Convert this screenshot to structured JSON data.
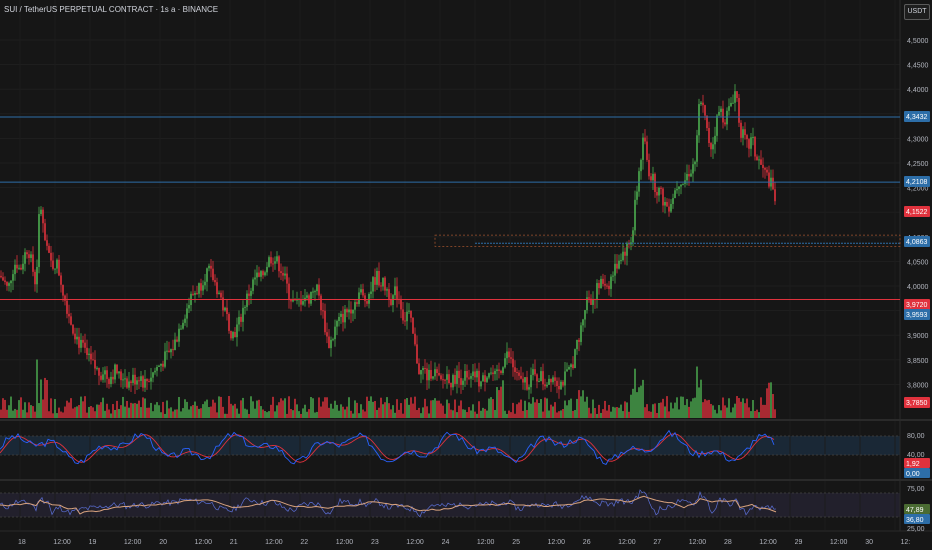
{
  "header": {
    "title": "SUI / TetherUS PERPETUAL CONTRACT · 1s a · BINANCE",
    "currency": "USDT"
  },
  "price_axis": {
    "ticks": [
      "4,5000",
      "4,4500",
      "4,4000",
      "4,3500",
      "4,3000",
      "4,2500",
      "4,2000",
      "4,1500",
      "4,1000",
      "4,0500",
      "4,0000",
      "3,9500",
      "3,9000",
      "3,8500",
      "3,8000"
    ],
    "labels": [
      {
        "text": "4,3432",
        "color": "#2d6ea8"
      },
      {
        "text": "4,2108",
        "color": "#2d6ea8"
      },
      {
        "text": "4,1522",
        "color": "#e0323d"
      },
      {
        "text": "4,0863",
        "color": "#2d6ea8"
      },
      {
        "text": "3,9720",
        "color": "#e0323d"
      },
      {
        "text": "3,9593",
        "color": "#2d6ea8"
      },
      {
        "text": "3,7850",
        "color": "#e0323d"
      }
    ]
  },
  "stoch_axis": {
    "ticks": [
      "80,00",
      "40,00"
    ],
    "labels": [
      {
        "text": "1,92",
        "color": "#e0323d"
      },
      {
        "text": "0,00",
        "color": "#2d6ea8"
      }
    ]
  },
  "rsi_axis": {
    "ticks": [
      "75,00",
      "25,00"
    ],
    "labels": [
      {
        "text": "47,89",
        "color": "#4a6b32"
      },
      {
        "text": "36,80",
        "color": "#2d6ea8"
      }
    ]
  },
  "time_axis": [
    "18",
    "12:00",
    "19",
    "12:00",
    "20",
    "12:00",
    "21",
    "12:00",
    "22",
    "12:00",
    "23",
    "12:00",
    "24",
    "12:00",
    "25",
    "12:00",
    "26",
    "12:00",
    "27",
    "12:00",
    "28",
    "12:00",
    "29",
    "12:00",
    "30",
    "12:"
  ],
  "colors": {
    "bg": "#161616",
    "up": "#26a69a",
    "up_green": "#4caf50",
    "down": "#e0323d",
    "hline": "#2d6ea8",
    "sline": "#e0323d",
    "stoch_k": "#2962ff",
    "stoch_d": "#e0323d",
    "rsi": "#5b6fd6",
    "rsi_ma": "#d9a37e"
  },
  "chart_data": {
    "type": "candlestick",
    "ylim": [
      3.75,
      4.52
    ],
    "key_levels": [
      4.3432,
      4.2108,
      4.0863,
      3.972
    ],
    "last_price": 4.1522,
    "close_path": [
      [
        0,
        4.02
      ],
      [
        4,
        4.01
      ],
      [
        8,
        3.99
      ],
      [
        12,
        4.03
      ],
      [
        16,
        4.05
      ],
      [
        20,
        4.03
      ],
      [
        24,
        4.06
      ],
      [
        28,
        4.08
      ],
      [
        32,
        4.04
      ],
      [
        36,
        4.0
      ],
      [
        40,
        4.18
      ],
      [
        44,
        4.1
      ],
      [
        48,
        4.06
      ],
      [
        52,
        4.04
      ],
      [
        56,
        4.05
      ],
      [
        60,
        4.02
      ],
      [
        64,
        3.98
      ],
      [
        68,
        3.95
      ],
      [
        72,
        3.92
      ],
      [
        76,
        3.9
      ],
      [
        80,
        3.88
      ],
      [
        84,
        3.87
      ],
      [
        88,
        3.85
      ],
      [
        92,
        3.84
      ],
      [
        96,
        3.83
      ],
      [
        100,
        3.82
      ],
      [
        104,
        3.83
      ],
      [
        108,
        3.81
      ],
      [
        112,
        3.82
      ],
      [
        116,
        3.83
      ],
      [
        120,
        3.81
      ],
      [
        124,
        3.82
      ],
      [
        128,
        3.8
      ],
      [
        132,
        3.81
      ],
      [
        136,
        3.81
      ],
      [
        140,
        3.82
      ],
      [
        144,
        3.8
      ],
      [
        148,
        3.81
      ],
      [
        152,
        3.82
      ],
      [
        156,
        3.83
      ],
      [
        160,
        3.84
      ],
      [
        164,
        3.85
      ],
      [
        168,
        3.86
      ],
      [
        172,
        3.87
      ],
      [
        176,
        3.89
      ],
      [
        180,
        3.92
      ],
      [
        184,
        3.94
      ],
      [
        188,
        3.96
      ],
      [
        192,
        3.98
      ],
      [
        196,
        3.99
      ],
      [
        200,
        4.0
      ],
      [
        204,
        4.02
      ],
      [
        208,
        4.03
      ],
      [
        212,
        4.02
      ],
      [
        216,
        4.0
      ],
      [
        220,
        3.98
      ],
      [
        224,
        3.95
      ],
      [
        228,
        3.93
      ],
      [
        232,
        3.9
      ],
      [
        236,
        3.91
      ],
      [
        240,
        3.93
      ],
      [
        244,
        3.96
      ],
      [
        248,
        3.98
      ],
      [
        252,
        4.0
      ],
      [
        256,
        4.02
      ],
      [
        260,
        4.01
      ],
      [
        264,
        4.03
      ],
      [
        268,
        4.05
      ],
      [
        272,
        4.06
      ],
      [
        276,
        4.05
      ],
      [
        280,
        4.04
      ],
      [
        284,
        4.02
      ],
      [
        288,
        3.99
      ],
      [
        292,
        3.97
      ],
      [
        296,
        3.96
      ],
      [
        300,
        3.97
      ],
      [
        304,
        3.98
      ],
      [
        308,
        3.97
      ],
      [
        312,
        3.99
      ],
      [
        316,
        4.0
      ],
      [
        320,
        3.97
      ],
      [
        324,
        3.93
      ],
      [
        328,
        3.88
      ],
      [
        332,
        3.89
      ],
      [
        336,
        3.92
      ],
      [
        340,
        3.93
      ],
      [
        344,
        3.94
      ],
      [
        348,
        3.95
      ],
      [
        352,
        3.96
      ],
      [
        356,
        3.97
      ],
      [
        360,
        3.99
      ],
      [
        364,
        3.97
      ],
      [
        368,
        3.98
      ],
      [
        372,
        4.0
      ],
      [
        376,
        4.02
      ],
      [
        380,
        4.01
      ],
      [
        384,
        4.0
      ],
      [
        388,
        3.99
      ],
      [
        392,
        3.97
      ],
      [
        396,
        3.99
      ],
      [
        400,
        3.97
      ],
      [
        404,
        3.93
      ],
      [
        408,
        3.95
      ],
      [
        412,
        3.91
      ],
      [
        416,
        3.86
      ],
      [
        420,
        3.82
      ],
      [
        424,
        3.83
      ],
      [
        428,
        3.81
      ],
      [
        432,
        3.83
      ],
      [
        436,
        3.82
      ],
      [
        440,
        3.8
      ],
      [
        444,
        3.81
      ],
      [
        448,
        3.82
      ],
      [
        452,
        3.8
      ],
      [
        456,
        3.82
      ],
      [
        460,
        3.81
      ],
      [
        464,
        3.82
      ],
      [
        468,
        3.8
      ],
      [
        472,
        3.81
      ],
      [
        476,
        3.82
      ],
      [
        480,
        3.8
      ],
      [
        484,
        3.81
      ],
      [
        488,
        3.83
      ],
      [
        492,
        3.82
      ],
      [
        496,
        3.81
      ],
      [
        500,
        3.83
      ],
      [
        504,
        3.85
      ],
      [
        508,
        3.86
      ],
      [
        512,
        3.84
      ],
      [
        516,
        3.82
      ],
      [
        520,
        3.8
      ],
      [
        524,
        3.81
      ],
      [
        528,
        3.8
      ],
      [
        532,
        3.82
      ],
      [
        536,
        3.81
      ],
      [
        540,
        3.82
      ],
      [
        544,
        3.8
      ],
      [
        548,
        3.81
      ],
      [
        552,
        3.82
      ],
      [
        556,
        3.81
      ],
      [
        560,
        3.8
      ],
      [
        564,
        3.81
      ],
      [
        568,
        3.82
      ],
      [
        572,
        3.84
      ],
      [
        576,
        3.87
      ],
      [
        580,
        3.9
      ],
      [
        584,
        3.95
      ],
      [
        588,
        3.98
      ],
      [
        592,
        3.97
      ],
      [
        596,
        3.99
      ],
      [
        600,
        4.0
      ],
      [
        604,
        4.01
      ],
      [
        608,
        4.0
      ],
      [
        612,
        4.02
      ],
      [
        616,
        4.04
      ],
      [
        620,
        4.06
      ],
      [
        624,
        4.07
      ],
      [
        628,
        4.08
      ],
      [
        632,
        4.1
      ],
      [
        636,
        4.18
      ],
      [
        640,
        4.25
      ],
      [
        644,
        4.3
      ],
      [
        648,
        4.24
      ],
      [
        652,
        4.22
      ],
      [
        656,
        4.2
      ],
      [
        660,
        4.19
      ],
      [
        664,
        4.17
      ],
      [
        668,
        4.16
      ],
      [
        672,
        4.18
      ],
      [
        676,
        4.2
      ],
      [
        680,
        4.22
      ],
      [
        684,
        4.21
      ],
      [
        688,
        4.23
      ],
      [
        692,
        4.24
      ],
      [
        696,
        4.26
      ],
      [
        700,
        4.4
      ],
      [
        704,
        4.35
      ],
      [
        708,
        4.3
      ],
      [
        712,
        4.28
      ],
      [
        716,
        4.33
      ],
      [
        720,
        4.36
      ],
      [
        724,
        4.34
      ],
      [
        728,
        4.35
      ],
      [
        732,
        4.38
      ],
      [
        736,
        4.4
      ],
      [
        740,
        4.32
      ],
      [
        744,
        4.3
      ],
      [
        748,
        4.28
      ],
      [
        752,
        4.3
      ],
      [
        756,
        4.26
      ],
      [
        760,
        4.25
      ],
      [
        764,
        4.23
      ],
      [
        768,
        4.22
      ],
      [
        772,
        4.2
      ],
      [
        776,
        4.17
      ]
    ]
  }
}
